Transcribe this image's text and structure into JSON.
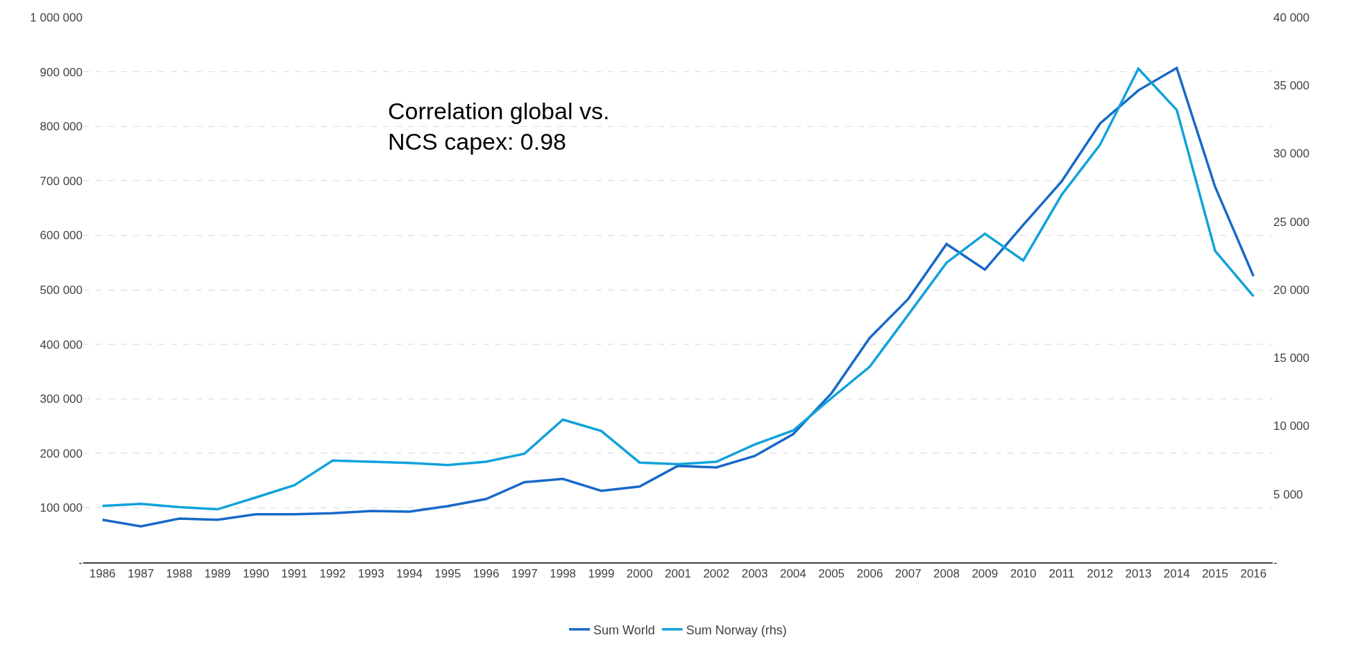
{
  "chart_data": {
    "type": "line",
    "categories": [
      "1986",
      "1987",
      "1988",
      "1989",
      "1990",
      "1991",
      "1992",
      "1993",
      "1994",
      "1995",
      "1996",
      "1997",
      "1998",
      "1999",
      "2000",
      "2001",
      "2002",
      "2003",
      "2004",
      "2005",
      "2006",
      "2007",
      "2008",
      "2009",
      "2010",
      "2011",
      "2012",
      "2013",
      "2014",
      "2015",
      "2016"
    ],
    "series": [
      {
        "name": "Sum World",
        "color": "#1769c8",
        "values": [
          78000,
          66000,
          80000,
          78000,
          88000,
          88000,
          90000,
          94000,
          93000,
          103000,
          116000,
          147000,
          153000,
          131000,
          139000,
          177000,
          174000,
          195000,
          235000,
          310000,
          412000,
          483000,
          584000,
          537000,
          619000,
          699000,
          805000,
          866000,
          907000,
          689000,
          525000
        ]
      },
      {
        "name": "Sum Norway (rhs)",
        "color": "#10a2da",
        "axis": "y2",
        "values": [
          4140,
          4290,
          4050,
          3890,
          4760,
          5650,
          7470,
          7380,
          7290,
          7140,
          7380,
          7970,
          10470,
          9640,
          7320,
          7200,
          7380,
          8650,
          9670,
          12050,
          14360,
          18160,
          21990,
          24120,
          22150,
          26970,
          30640,
          36230,
          33200,
          22860,
          19520
        ]
      }
    ],
    "ylim": [
      0,
      1000000
    ],
    "yticks": [
      {
        "value": 0,
        "label": "-"
      },
      {
        "value": 100000,
        "label": "100 000"
      },
      {
        "value": 200000,
        "label": "200 000"
      },
      {
        "value": 300000,
        "label": "300 000"
      },
      {
        "value": 400000,
        "label": "400 000"
      },
      {
        "value": 500000,
        "label": "500 000"
      },
      {
        "value": 600000,
        "label": "600 000"
      },
      {
        "value": 700000,
        "label": "700 000"
      },
      {
        "value": 800000,
        "label": "800 000"
      },
      {
        "value": 900000,
        "label": "900 000"
      },
      {
        "value": 1000000,
        "label": "1 000 000"
      }
    ],
    "y2lim": [
      0,
      40000
    ],
    "y2ticks": [
      {
        "value": 0,
        "label": "-"
      },
      {
        "value": 5000,
        "label": "5 000"
      },
      {
        "value": 10000,
        "label": "10 000"
      },
      {
        "value": 15000,
        "label": "15 000"
      },
      {
        "value": 20000,
        "label": "20 000"
      },
      {
        "value": 25000,
        "label": "25 000"
      },
      {
        "value": 30000,
        "label": "30 000"
      },
      {
        "value": 35000,
        "label": "35 000"
      },
      {
        "value": 40000,
        "label": "40 000"
      }
    ],
    "annotations": [
      "Correlation global vs.\nNCS capex: 0.98"
    ],
    "grid": "y",
    "legend": "bottom",
    "marker": "none",
    "line_style": "solid"
  }
}
